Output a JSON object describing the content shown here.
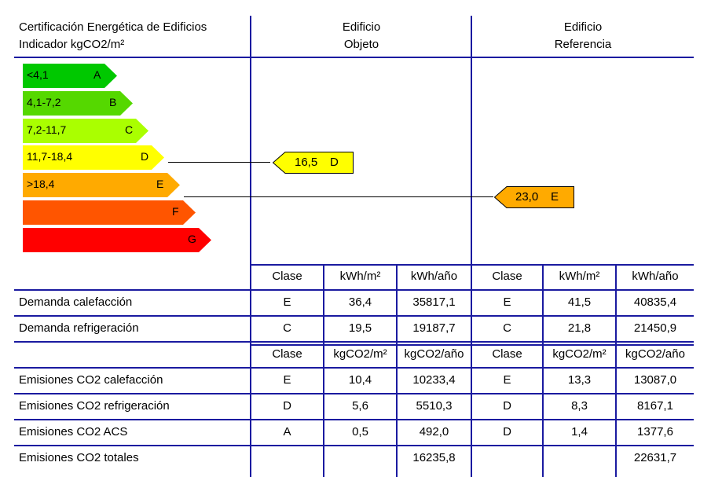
{
  "header": {
    "title_line1": "Certificación Energética de Edificios",
    "title_line2": "Indicador kgCO2/m²",
    "objeto_line1": "Edificio",
    "objeto_line2": "Objeto",
    "referencia_line1": "Edificio",
    "referencia_line2": "Referencia"
  },
  "scale": [
    {
      "range": "<4,1",
      "letter": "A",
      "color": "#00c800"
    },
    {
      "range": "4,1-7,2",
      "letter": "B",
      "color": "#55d800"
    },
    {
      "range": "7,2-11,7",
      "letter": "C",
      "color": "#aaff00"
    },
    {
      "range": "11,7-18,4",
      "letter": "D",
      "color": "#ffff00"
    },
    {
      "range": ">18,4",
      "letter": "E",
      "color": "#ffaa00"
    },
    {
      "range": "",
      "letter": "F",
      "color": "#ff5500"
    },
    {
      "range": "",
      "letter": "G",
      "color": "#ff0000"
    }
  ],
  "objeto_rating": {
    "value": "16,5",
    "letter": "D",
    "color": "#ffff00"
  },
  "referencia_rating": {
    "value": "23,0",
    "letter": "E",
    "color": "#ffaa00"
  },
  "demand_table": {
    "headers": [
      "Clase",
      "kWh/m²",
      "kWh/año",
      "Clase",
      "kWh/m²",
      "kWh/año"
    ],
    "rows": [
      {
        "label": "Demanda calefacción",
        "cells": [
          "E",
          "36,4",
          "35817,1",
          "E",
          "41,5",
          "40835,4"
        ]
      },
      {
        "label": "Demanda refrigeración",
        "cells": [
          "C",
          "19,5",
          "19187,7",
          "C",
          "21,8",
          "21450,9"
        ]
      }
    ]
  },
  "emissions_table": {
    "headers": [
      "Clase",
      "kgCO2/m²",
      "kgCO2/año",
      "Clase",
      "kgCO2/m²",
      "kgCO2/año"
    ],
    "rows": [
      {
        "label": "Emisiones CO2 calefacción",
        "cells": [
          "E",
          "10,4",
          "10233,4",
          "E",
          "13,3",
          "13087,0"
        ]
      },
      {
        "label": "Emisiones CO2 refrigeración",
        "cells": [
          "D",
          "5,6",
          "5510,3",
          "D",
          "8,3",
          "8167,1"
        ]
      },
      {
        "label": "Emisiones CO2 ACS",
        "cells": [
          "A",
          "0,5",
          "492,0",
          "D",
          "1,4",
          "1377,6"
        ]
      },
      {
        "label": "Emisiones CO2 totales",
        "cells": [
          "",
          "",
          "16235,8",
          "",
          "",
          "22631,7"
        ]
      }
    ]
  }
}
